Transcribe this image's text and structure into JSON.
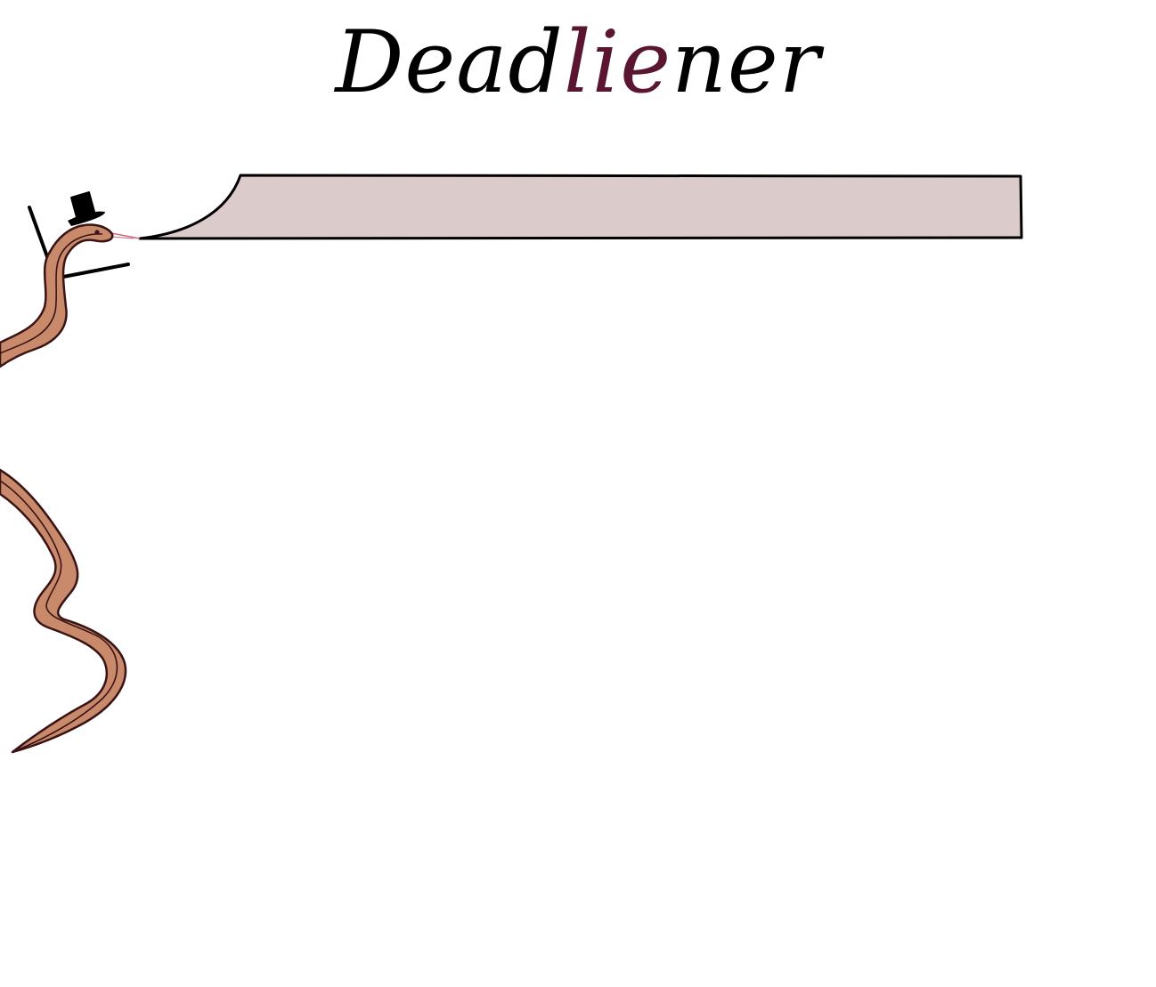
{
  "app": {
    "title_part_1": "Dead",
    "title_part_2": "lie",
    "title_part_3": "ner"
  },
  "task_bar": {
    "value": "",
    "placeholder": ""
  },
  "colors": {
    "accent": "#5a1530",
    "bar_fill": "#dccbcb",
    "snake_body": "#c9896b",
    "snake_outline": "#3a1414"
  },
  "icons": {
    "mascot": "snake-mascot-icon",
    "hat": "top-hat-icon",
    "cane": "cane-icon"
  }
}
